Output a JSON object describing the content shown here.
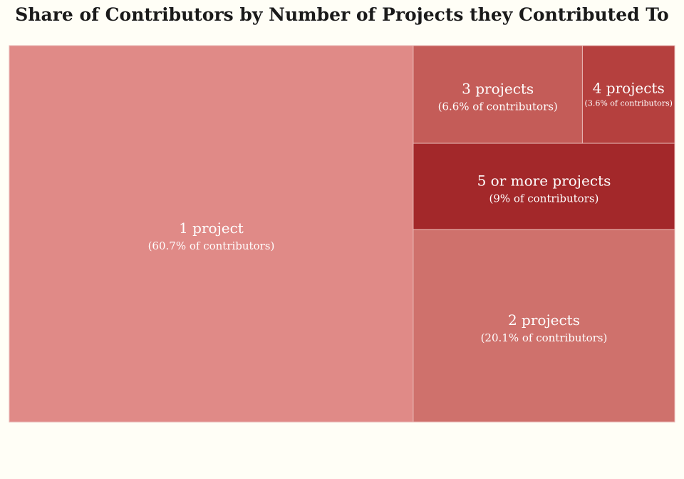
{
  "chart_data": {
    "type": "treemap",
    "title": "Share of Contributors by Number of Projects they Contributed To",
    "value_unit": "% of contributors",
    "items": [
      {
        "name": "1 project",
        "value": 60.7,
        "sublabel": "(60.7% of contributors)",
        "color": "#e08a87"
      },
      {
        "name": "2 projects",
        "value": 20.1,
        "sublabel": "(20.1% of contributors)",
        "color": "#cf716c"
      },
      {
        "name": "5 or more projects",
        "value": 9,
        "sublabel": "(9% of contributors)",
        "color": "#a3282a"
      },
      {
        "name": "3 projects",
        "value": 6.6,
        "sublabel": "(6.6% of contributors)",
        "color": "#c45c58"
      },
      {
        "name": "4 projects",
        "value": 3.6,
        "sublabel": "(3.6% of contributors)",
        "color": "#b5403e"
      }
    ]
  }
}
